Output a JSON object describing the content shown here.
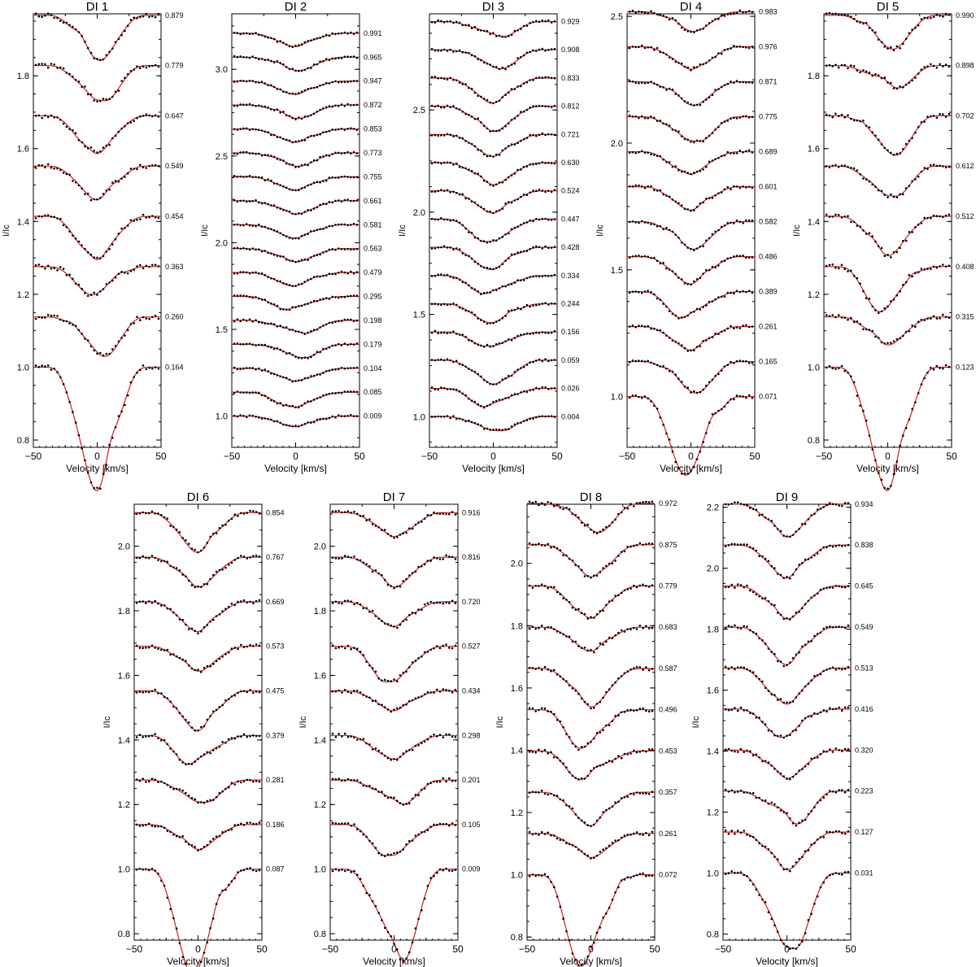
{
  "figure": {
    "width": 1200,
    "height": 1189
  },
  "colors": {
    "model": "#d21a1a",
    "observed": "#000000",
    "frame": "#000000"
  },
  "chart_data": [
    {
      "type": "line",
      "title": "DI 1",
      "xlabel": "Velocity [km/s]",
      "ylabel": "I/Ic",
      "xlim": [
        -50,
        50
      ],
      "ylim": [
        0.78,
        1.97
      ],
      "x_ticks": [
        "−50",
        "0",
        "50"
      ],
      "y_ticks": [
        0.8,
        1.0,
        1.2,
        1.4,
        1.6,
        1.8
      ],
      "y_tick_labels": [
        "0.8",
        "1.0",
        "1.2",
        "1.4",
        "1.6",
        "1.8"
      ],
      "offset_step": 0.138,
      "continuum_first": 1.0,
      "series": [
        {
          "phase": "0.164",
          "depth": 0.22,
          "center": 0
        },
        {
          "phase": "0.260",
          "depth": 0.07,
          "center": 6
        },
        {
          "phase": "0.363",
          "depth": 0.05,
          "center": -4
        },
        {
          "phase": "0.454",
          "depth": 0.08,
          "center": -2
        },
        {
          "phase": "0.549",
          "depth": 0.06,
          "center": 0
        },
        {
          "phase": "0.647",
          "depth": 0.07,
          "center": -2
        },
        {
          "phase": "0.779",
          "depth": 0.07,
          "center": 4
        },
        {
          "phase": "0.879",
          "depth": 0.08,
          "center": 2
        }
      ]
    },
    {
      "type": "line",
      "title": "DI 2",
      "xlabel": "Velocity [km/s]",
      "ylabel": "I/Ic",
      "xlim": [
        -50,
        50
      ],
      "ylim": [
        0.82,
        3.32
      ],
      "x_ticks": [
        "−50",
        "0",
        "50"
      ],
      "y_ticks": [
        1.0,
        1.5,
        2.0,
        2.5,
        3.0
      ],
      "y_tick_labels": [
        "1.0",
        "1.5",
        "2.0",
        "2.5",
        "3.0"
      ],
      "offset_step": 0.138,
      "continuum_first": 1.0,
      "series": [
        {
          "phase": "0.009",
          "depth": 0.04,
          "center": 0
        },
        {
          "phase": "0.085",
          "depth": 0.06,
          "center": -3
        },
        {
          "phase": "0.104",
          "depth": 0.05,
          "center": 2
        },
        {
          "phase": "0.179",
          "depth": 0.05,
          "center": 6
        },
        {
          "phase": "0.198",
          "depth": 0.05,
          "center": 6
        },
        {
          "phase": "0.295",
          "depth": 0.05,
          "center": -6
        },
        {
          "phase": "0.479",
          "depth": 0.05,
          "center": -2
        },
        {
          "phase": "0.563",
          "depth": 0.05,
          "center": 0
        },
        {
          "phase": "0.581",
          "depth": 0.05,
          "center": 0
        },
        {
          "phase": "0.661",
          "depth": 0.05,
          "center": 0
        },
        {
          "phase": "0.755",
          "depth": 0.05,
          "center": 0
        },
        {
          "phase": "0.773",
          "depth": 0.05,
          "center": 2
        },
        {
          "phase": "0.853",
          "depth": 0.05,
          "center": 0
        },
        {
          "phase": "0.872",
          "depth": 0.05,
          "center": 2
        },
        {
          "phase": "0.947",
          "depth": 0.05,
          "center": 0
        },
        {
          "phase": "0.965",
          "depth": 0.05,
          "center": 2
        },
        {
          "phase": "0.991",
          "depth": 0.05,
          "center": 0
        }
      ]
    },
    {
      "type": "line",
      "title": "DI 3",
      "xlabel": "Velocity [km/s]",
      "ylabel": "I/Ic",
      "xlim": [
        -50,
        50
      ],
      "ylim": [
        0.85,
        2.97
      ],
      "x_ticks": [
        "−50",
        "0",
        "50"
      ],
      "y_ticks": [
        1.0,
        1.5,
        2.0,
        2.5
      ],
      "y_tick_labels": [
        "1.0",
        "1.5",
        "2.0",
        "2.5"
      ],
      "offset_step": 0.138,
      "continuum_first": 1.0,
      "series": [
        {
          "phase": "0.004",
          "depth": 0.05,
          "center": 4
        },
        {
          "phase": "0.026",
          "depth": 0.06,
          "center": -6
        },
        {
          "phase": "0.059",
          "depth": 0.08,
          "center": 2
        },
        {
          "phase": "0.156",
          "depth": 0.05,
          "center": -4
        },
        {
          "phase": "0.244",
          "depth": 0.06,
          "center": -2
        },
        {
          "phase": "0.334",
          "depth": 0.06,
          "center": -6
        },
        {
          "phase": "0.428",
          "depth": 0.07,
          "center": -2
        },
        {
          "phase": "0.447",
          "depth": 0.08,
          "center": -4
        },
        {
          "phase": "0.524",
          "depth": 0.07,
          "center": 0
        },
        {
          "phase": "0.630",
          "depth": 0.07,
          "center": 0
        },
        {
          "phase": "0.721",
          "depth": 0.07,
          "center": 0
        },
        {
          "phase": "0.812",
          "depth": 0.08,
          "center": 0
        },
        {
          "phase": "0.833",
          "depth": 0.08,
          "center": 0
        },
        {
          "phase": "0.908",
          "depth": 0.06,
          "center": 6
        },
        {
          "phase": "0.929",
          "depth": 0.05,
          "center": 6
        }
      ]
    },
    {
      "type": "line",
      "title": "DI 4",
      "xlabel": "Velocity [km/s]",
      "ylabel": "I/Ic",
      "xlim": [
        -50,
        50
      ],
      "ylim": [
        0.8,
        2.51
      ],
      "x_ticks": [
        "−50",
        "0",
        "50"
      ],
      "y_ticks": [
        1.0,
        1.5,
        2.0,
        2.5
      ],
      "y_tick_labels": [
        "1.0",
        "1.5",
        "2.0",
        "2.5"
      ],
      "offset_step": 0.138,
      "continuum_first": 1.0,
      "series": [
        {
          "phase": "0.071",
          "depth": 0.2,
          "center": -4
        },
        {
          "phase": "0.165",
          "depth": 0.08,
          "center": 4
        },
        {
          "phase": "0.261",
          "depth": 0.06,
          "center": 0
        },
        {
          "phase": "0.389",
          "depth": 0.07,
          "center": -6
        },
        {
          "phase": "0.486",
          "depth": 0.07,
          "center": 0
        },
        {
          "phase": "0.582",
          "depth": 0.07,
          "center": 2
        },
        {
          "phase": "0.601",
          "depth": 0.06,
          "center": 0
        },
        {
          "phase": "0.689",
          "depth": 0.06,
          "center": -2
        },
        {
          "phase": "0.775",
          "depth": 0.07,
          "center": 4
        },
        {
          "phase": "0.871",
          "depth": 0.06,
          "center": 2
        },
        {
          "phase": "0.976",
          "depth": 0.06,
          "center": 2
        },
        {
          "phase": "0.983",
          "depth": 0.05,
          "center": 2
        }
      ]
    },
    {
      "type": "line",
      "title": "DI 5",
      "xlabel": "Velocity [km/s]",
      "ylabel": "I/Ic",
      "xlim": [
        -50,
        50
      ],
      "ylim": [
        0.78,
        1.97
      ],
      "x_ticks": [
        "−50",
        "0",
        "50"
      ],
      "y_ticks": [
        0.8,
        1.0,
        1.2,
        1.4,
        1.6,
        1.8
      ],
      "y_tick_labels": [
        "0.8",
        "1.0",
        "1.2",
        "1.4",
        "1.6",
        "1.8"
      ],
      "offset_step": 0.138,
      "continuum_first": 1.0,
      "series": [
        {
          "phase": "0.123",
          "depth": 0.22,
          "center": 0
        },
        {
          "phase": "0.315",
          "depth": 0.05,
          "center": 0
        },
        {
          "phase": "0.408",
          "depth": 0.08,
          "center": -6
        },
        {
          "phase": "0.512",
          "depth": 0.07,
          "center": 0
        },
        {
          "phase": "0.612",
          "depth": 0.06,
          "center": 4
        },
        {
          "phase": "0.702",
          "depth": 0.07,
          "center": 6
        },
        {
          "phase": "0.898",
          "depth": 0.04,
          "center": 8
        },
        {
          "phase": "0.990",
          "depth": 0.06,
          "center": 4
        }
      ]
    },
    {
      "type": "line",
      "title": "DI 6",
      "xlabel": "Velocity [km/s]",
      "ylabel": "I/Ic",
      "xlim": [
        -50,
        50
      ],
      "ylim": [
        0.78,
        2.13
      ],
      "x_ticks": [
        "−50",
        "0",
        "50"
      ],
      "y_ticks": [
        0.8,
        1.0,
        1.2,
        1.4,
        1.6,
        1.8,
        2.0
      ],
      "y_tick_labels": [
        "0.8",
        "1.0",
        "1.2",
        "1.4",
        "1.6",
        "1.8",
        "2.0"
      ],
      "offset_step": 0.138,
      "continuum_first": 1.0,
      "series": [
        {
          "phase": "0.087",
          "depth": 0.21,
          "center": -4
        },
        {
          "phase": "0.186",
          "depth": 0.05,
          "center": 0
        },
        {
          "phase": "0.281",
          "depth": 0.05,
          "center": 4
        },
        {
          "phase": "0.379",
          "depth": 0.06,
          "center": -6
        },
        {
          "phase": "0.475",
          "depth": 0.08,
          "center": 0
        },
        {
          "phase": "0.573",
          "depth": 0.05,
          "center": 0
        },
        {
          "phase": "0.669",
          "depth": 0.06,
          "center": 0
        },
        {
          "phase": "0.767",
          "depth": 0.06,
          "center": 0
        },
        {
          "phase": "0.854",
          "depth": 0.08,
          "center": 0
        }
      ]
    },
    {
      "type": "line",
      "title": "DI 7",
      "xlabel": "Velocity [km/s]",
      "ylabel": "I/Ic",
      "xlim": [
        -50,
        50
      ],
      "ylim": [
        0.78,
        2.13
      ],
      "x_ticks": [
        "−50",
        "0",
        "50"
      ],
      "y_ticks": [
        0.8,
        1.0,
        1.2,
        1.4,
        1.6,
        1.8,
        2.0
      ],
      "y_tick_labels": [
        "0.8",
        "1.0",
        "1.2",
        "1.4",
        "1.6",
        "1.8",
        "2.0"
      ],
      "offset_step": 0.138,
      "continuum_first": 1.0,
      "series": [
        {
          "phase": "0.009",
          "depth": 0.19,
          "center": 6
        },
        {
          "phase": "0.105",
          "depth": 0.07,
          "center": -4
        },
        {
          "phase": "0.201",
          "depth": 0.05,
          "center": 6
        },
        {
          "phase": "0.298",
          "depth": 0.05,
          "center": -2
        },
        {
          "phase": "0.434",
          "depth": 0.04,
          "center": 0
        },
        {
          "phase": "0.527",
          "depth": 0.08,
          "center": -4
        },
        {
          "phase": "0.720",
          "depth": 0.05,
          "center": 0
        },
        {
          "phase": "0.816",
          "depth": 0.06,
          "center": 0
        },
        {
          "phase": "0.916",
          "depth": 0.05,
          "center": 2
        }
      ]
    },
    {
      "type": "line",
      "title": "DI 8",
      "xlabel": "Velocity [km/s]",
      "ylabel": "I/Ic",
      "xlim": [
        -50,
        50
      ],
      "ylim": [
        0.79,
        2.19
      ],
      "x_ticks": [
        "−50",
        "0",
        "50"
      ],
      "y_ticks": [
        0.8,
        1.0,
        1.2,
        1.4,
        1.6,
        1.8,
        2.0
      ],
      "y_tick_labels": [
        "0.8",
        "1.0",
        "1.2",
        "1.4",
        "1.6",
        "1.8",
        "2.0"
      ],
      "offset_step": 0.1325,
      "continuum_first": 1.0,
      "series": [
        {
          "phase": "0.072",
          "depth": 0.19,
          "center": -8
        },
        {
          "phase": "0.261",
          "depth": 0.05,
          "center": 0
        },
        {
          "phase": "0.357",
          "depth": 0.07,
          "center": 0
        },
        {
          "phase": "0.453",
          "depth": 0.06,
          "center": -8
        },
        {
          "phase": "0.496",
          "depth": 0.08,
          "center": -8
        },
        {
          "phase": "0.587",
          "depth": 0.08,
          "center": 0
        },
        {
          "phase": "0.683",
          "depth": 0.05,
          "center": 0
        },
        {
          "phase": "0.779",
          "depth": 0.07,
          "center": -2
        },
        {
          "phase": "0.875",
          "depth": 0.07,
          "center": 2
        },
        {
          "phase": "0.972",
          "depth": 0.06,
          "center": 6
        }
      ]
    },
    {
      "type": "line",
      "title": "DI 9",
      "xlabel": "Velocity [km/s]",
      "ylabel": "I/Ic",
      "xlim": [
        -50,
        50
      ],
      "ylim": [
        0.78,
        2.21
      ],
      "x_ticks": [
        "−50",
        "0",
        "50"
      ],
      "y_ticks": [
        0.8,
        1.0,
        1.2,
        1.4,
        1.6,
        1.8,
        2.0,
        2.2
      ],
      "y_tick_labels": [
        "0.8",
        "1.0",
        "1.2",
        "1.4",
        "1.6",
        "1.8",
        "2.0",
        "2.2"
      ],
      "offset_step": 0.1345,
      "continuum_first": 1.0,
      "series": [
        {
          "phase": "0.031",
          "depth": 0.18,
          "center": 4
        },
        {
          "phase": "0.127",
          "depth": 0.08,
          "center": 0
        },
        {
          "phase": "0.223",
          "depth": 0.07,
          "center": 8
        },
        {
          "phase": "0.320",
          "depth": 0.06,
          "center": 0
        },
        {
          "phase": "0.416",
          "depth": 0.06,
          "center": -4
        },
        {
          "phase": "0.513",
          "depth": 0.08,
          "center": -2
        },
        {
          "phase": "0.549",
          "depth": 0.08,
          "center": 0
        },
        {
          "phase": "0.645",
          "depth": 0.07,
          "center": 0
        },
        {
          "phase": "0.838",
          "depth": 0.07,
          "center": 0
        },
        {
          "phase": "0.934",
          "depth": 0.07,
          "center": 0
        }
      ]
    }
  ]
}
